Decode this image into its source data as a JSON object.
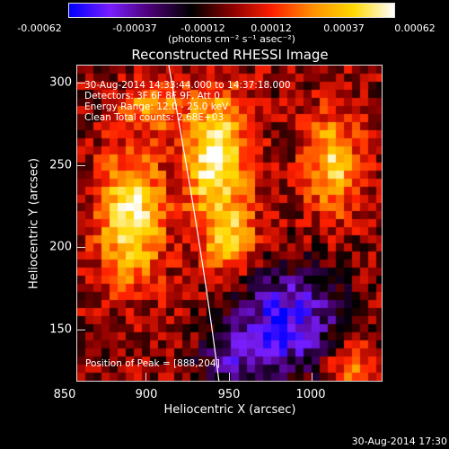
{
  "colorbar": {
    "ticks": [
      "-0.00062",
      "-0.00037",
      "-0.00012",
      "0.00012",
      "0.00037",
      "0.00062"
    ],
    "units": "(photons cm⁻² s⁻¹ asec⁻²)",
    "colormap": [
      "#0000ff",
      "#7a1fff",
      "#4b0073",
      "#000000",
      "#8b0000",
      "#ff2000",
      "#ff9000",
      "#ffd900",
      "#ffffff"
    ]
  },
  "plot": {
    "title": "Reconstructed RHESSI Image",
    "xlabel": "Heliocentric X (arcsec)",
    "ylabel": "Heliocentric Y (arcsec)",
    "x_ticks": [
      "850",
      "900",
      "950",
      "1000"
    ],
    "y_ticks": [
      "300",
      "250",
      "200",
      "150"
    ],
    "annotations": [
      "30-Aug-2014 14:33:44.000 to 14:37:18.000",
      "Detectors: 3F 6F 8F 9F, Att 0",
      "Energy Range: 12.0 - 25.0 keV",
      "Clean    Total counts: 2.68E+03"
    ],
    "peak_label": "Position of Peak = [888,204]"
  },
  "footer": {
    "timestamp": "30-Aug-2014 17:30"
  }
}
